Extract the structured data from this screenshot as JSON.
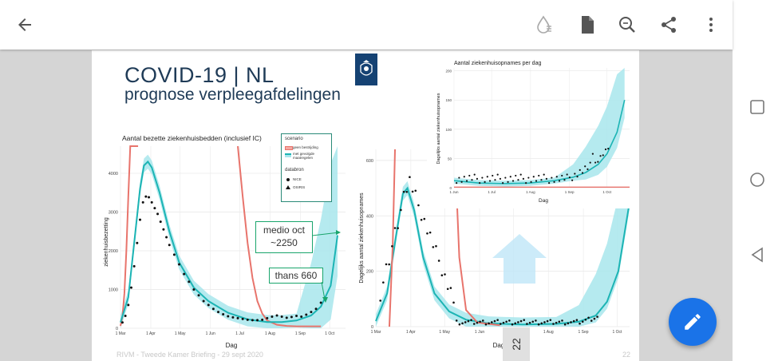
{
  "toolbar": {
    "back_icon": "arrow-back-icon",
    "icons": [
      "ink-drop-icon",
      "document-icon",
      "search-zoom-icon",
      "share-icon",
      "more-vert-icon"
    ]
  },
  "slide": {
    "title": "COVID-19 | NL",
    "subtitle": "prognose verpleegafdelingen",
    "footer": "RIVM - Tweede Kamer Briefing - 29 sept 2020",
    "page_number": "22"
  },
  "legend": {
    "scenario_title": "scenario",
    "scenario_items": [
      "geen bestrijding",
      "met gevolgde maatregelen"
    ],
    "source_title": "databron",
    "source_items": [
      "NICE",
      "OSIRIS"
    ]
  },
  "callouts": {
    "medio_line1": "medio oct",
    "medio_line2": "~2250",
    "thans": "thans 660"
  },
  "page_indicator": "22",
  "colors": {
    "red": "#e8746c",
    "teal": "#1cb4b4",
    "band": "#a8e6ec",
    "fab": "#1a73e8"
  },
  "chart_data": [
    {
      "type": "line",
      "title": "Aantal bezette ziekenhuisbedden (inclusief IC)",
      "xlabel": "Dag",
      "ylabel": "ziekenhuisbezetting",
      "x_ticks": [
        "1 Mar",
        "1 Apr",
        "1 May",
        "1 Jun",
        "1 Jul",
        "1 Aug",
        "1 Sep",
        "1 Oct"
      ],
      "y_ticks": [
        "0",
        "1000",
        "2000",
        "3000",
        "4000"
      ],
      "ylim": [
        0,
        4700
      ],
      "series": [
        {
          "name": "geen bestrijding",
          "x": [
            0,
            2,
            4,
            6,
            8,
            10,
            12,
            14,
            15,
            16,
            17,
            18
          ],
          "y": [
            60,
            300,
            900,
            2000,
            3400,
            4700,
            4700,
            4700,
            4700,
            4700,
            4700,
            4700
          ],
          "x2": [
            120,
            125,
            130,
            135,
            140,
            145,
            150,
            160,
            170,
            180,
            190,
            205
          ],
          "y2": [
            4700,
            3400,
            2200,
            1300,
            700,
            380,
            200,
            90,
            60,
            50,
            50,
            50
          ]
        },
        {
          "name": "met gevolgde maatregelen",
          "x": [
            0,
            8,
            14,
            20,
            24,
            28,
            32,
            40,
            50,
            60,
            75,
            90,
            110,
            130,
            150,
            165,
            180,
            195,
            205,
            215,
            222
          ],
          "y": [
            150,
            800,
            2200,
            3600,
            4200,
            4300,
            4150,
            3500,
            2500,
            1700,
            1050,
            700,
            400,
            230,
            160,
            160,
            200,
            330,
            560,
            1100,
            2400
          ]
        },
        {
          "name": "NICE",
          "x": [
            2,
            5,
            8,
            11,
            14,
            17,
            20,
            23,
            26,
            29,
            32,
            35,
            38,
            41,
            44,
            47,
            50,
            55,
            60,
            65,
            70,
            75,
            80,
            85,
            90,
            95,
            100,
            105,
            110,
            115,
            120,
            125,
            130,
            135,
            140,
            145,
            150,
            155,
            160,
            165,
            170,
            175,
            180,
            185,
            190,
            195,
            200,
            205
          ],
          "y": [
            150,
            320,
            600,
            1050,
            1600,
            2200,
            2800,
            3250,
            3400,
            3380,
            3250,
            3100,
            2950,
            2750,
            2550,
            2350,
            2150,
            1900,
            1650,
            1400,
            1200,
            1000,
            850,
            700,
            600,
            500,
            420,
            360,
            310,
            280,
            260,
            240,
            220,
            210,
            210,
            220,
            260,
            300,
            330,
            300,
            270,
            290,
            320,
            300,
            350,
            420,
            500,
            660
          ]
        }
      ]
    },
    {
      "type": "line",
      "title": "",
      "xlabel": "Dag",
      "ylabel": "Dagelijks aantal ziekenhuisopnames",
      "x_ticks": [
        "1 Mar",
        "1 Apr",
        "1 May",
        "1 Jun",
        "1 Jul",
        "1 Aug",
        "1 Sep",
        "1 Oct"
      ],
      "y_ticks": [
        "0",
        "200",
        "400",
        "600"
      ],
      "ylim": [
        0,
        640
      ]
    },
    {
      "type": "line",
      "title": "Aantal ziekenhuisopnames per dag",
      "xlabel": "Dag",
      "ylabel": "Dagelijks aantal ziekenhuisopnames",
      "x_ticks": [
        "1 Jun",
        "1 Jul",
        "1 Aug",
        "1 Sep",
        "1 Oct"
      ],
      "y_ticks": [
        "0",
        "50",
        "100",
        "150",
        "200"
      ],
      "ylim": [
        0,
        205
      ]
    }
  ]
}
